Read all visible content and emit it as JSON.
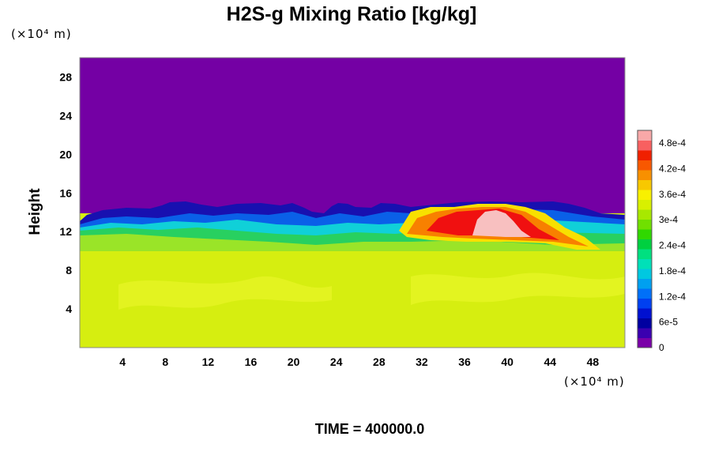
{
  "chart_data": {
    "type": "heatmap",
    "title": "H2S-g Mixing Ratio [kg/kg]",
    "ylabel": "Height",
    "xlabel": "",
    "x_unit": "(×10⁴ m)",
    "y_unit": "(×10⁴ m)",
    "footer": "TIME = 400000.0",
    "xlim": [
      0,
      51
    ],
    "ylim": [
      0,
      30
    ],
    "x_ticks": [
      "4",
      "8",
      "12",
      "16",
      "20",
      "24",
      "28",
      "32",
      "36",
      "40",
      "44",
      "48"
    ],
    "y_ticks": [
      "4",
      "8",
      "12",
      "16",
      "20",
      "24",
      "28"
    ],
    "colorbar": {
      "range": [
        0,
        0.00051
      ],
      "ticks": [
        "0",
        "6e-5",
        "1.2e-4",
        "1.8e-4",
        "2.4e-4",
        "3e-4",
        "3.6e-4",
        "4.2e-4",
        "4.8e-4"
      ]
    },
    "field_description": {
      "upper_region_value": 0,
      "lower_region_value": 0.00033,
      "interface_height_approx": 13,
      "maximum_location_approx": [
        39,
        12
      ],
      "maximum_value_approx": 0.0005
    }
  }
}
